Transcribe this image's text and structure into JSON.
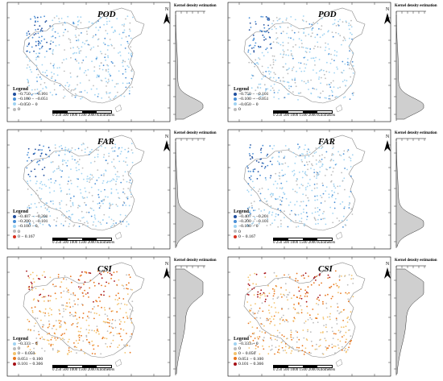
{
  "common": {
    "kde_title": "Kernel density estimation",
    "north_label": "N",
    "scale_numbers": "0 250 500    1000    1500    2000",
    "scale_unit": "Kilometers",
    "legend_title": "Legend"
  },
  "panels": [
    {
      "id": "pod-left",
      "title": "POD",
      "palette": "blue",
      "kde": "pod",
      "legend": [
        {
          "label": "−0.750 − −0.101",
          "color": "#1f4e9e"
        },
        {
          "label": "−0.100 − −0.051",
          "color": "#4a8fd6"
        },
        {
          "label": "−0.050 − 0",
          "color": "#9fd3f2"
        },
        {
          "label": "0",
          "color": "#bdbdbd"
        }
      ]
    },
    {
      "id": "pod-right",
      "title": "POD",
      "palette": "blue",
      "kde": "pod",
      "legend": [
        {
          "label": "−0.750 − −0.101",
          "color": "#1f4e9e"
        },
        {
          "label": "−0.100 − −0.051",
          "color": "#4a8fd6"
        },
        {
          "label": "−0.050 − 0",
          "color": "#9fd3f2"
        },
        {
          "label": "0",
          "color": "#bdbdbd"
        }
      ]
    },
    {
      "id": "far-left",
      "title": "FAR",
      "palette": "blue",
      "kde": "far",
      "legend": [
        {
          "label": "−0.407 − −0.201",
          "color": "#1f4e9e"
        },
        {
          "label": "−0.200 − −0.101",
          "color": "#4a8fd6"
        },
        {
          "label": "−0.100 − 0",
          "color": "#9fd3f2"
        },
        {
          "label": "0",
          "color": "#bdbdbd"
        },
        {
          "label": "0 − 0.167",
          "color": "#d7301f"
        }
      ]
    },
    {
      "id": "far-right",
      "title": "FAR",
      "palette": "blue",
      "kde": "far",
      "legend": [
        {
          "label": "−0.407 − −0.201",
          "color": "#1f4e9e"
        },
        {
          "label": "−0.200 − −0.101",
          "color": "#4a8fd6"
        },
        {
          "label": "−0.100 − 0",
          "color": "#9fd3f2"
        },
        {
          "label": "0",
          "color": "#bdbdbd"
        },
        {
          "label": "0 − 0.167",
          "color": "#d7301f"
        }
      ]
    },
    {
      "id": "csi-left",
      "title": "CSI",
      "palette": "warm",
      "kde": "csi",
      "legend": [
        {
          "label": "−0.333 − 0",
          "color": "#9fd3f2"
        },
        {
          "label": "0",
          "color": "#bdbdbd"
        },
        {
          "label": "0 − 0.050",
          "color": "#f4c26b"
        },
        {
          "label": "0.051 − 0.100",
          "color": "#e8761e"
        },
        {
          "label": "0.101 − 0.366",
          "color": "#a50f15"
        }
      ]
    },
    {
      "id": "csi-right",
      "title": "CSI",
      "palette": "warm",
      "kde": "csi",
      "legend": [
        {
          "label": "−0.333 − 0",
          "color": "#9fd3f2"
        },
        {
          "label": "0",
          "color": "#bdbdbd"
        },
        {
          "label": "0 − 0.050",
          "color": "#f4c26b"
        },
        {
          "label": "0.051 − 0.100",
          "color": "#e8761e"
        },
        {
          "label": "0.101 − 0.366",
          "color": "#a50f15"
        }
      ]
    }
  ]
}
